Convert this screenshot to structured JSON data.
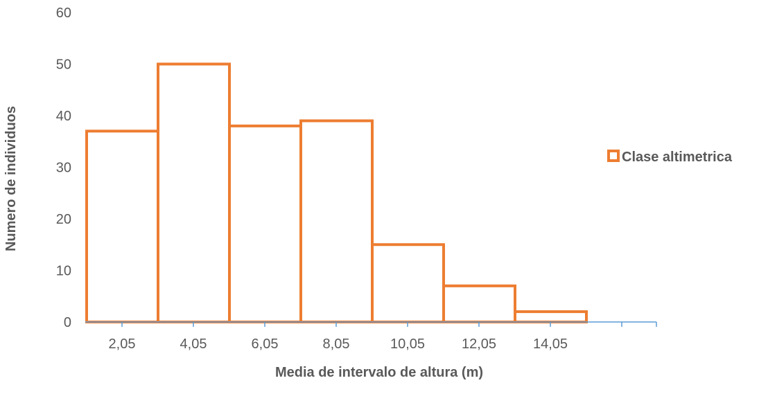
{
  "chart_data": {
    "type": "bar",
    "categories": [
      "2,05",
      "4,05",
      "6,05",
      "8,05",
      "10,05",
      "12,05",
      "14,05"
    ],
    "series": [
      {
        "name": "Clase altimetrica",
        "values": [
          37,
          50,
          38,
          39,
          15,
          7,
          2
        ]
      }
    ],
    "xlabel": "Media de intervalo de altura (m)",
    "ylabel": "Numero de individuos",
    "ylim": [
      0,
      60
    ],
    "yticks": [
      "0",
      "10",
      "20",
      "30",
      "40",
      "50",
      "60"
    ],
    "grid": false,
    "legend_position": "right",
    "colors": {
      "bar_outline": "#ED7D31",
      "bar_fill": "#ffffff",
      "x_axis": "#5B9BD5",
      "text": "#595959"
    }
  }
}
